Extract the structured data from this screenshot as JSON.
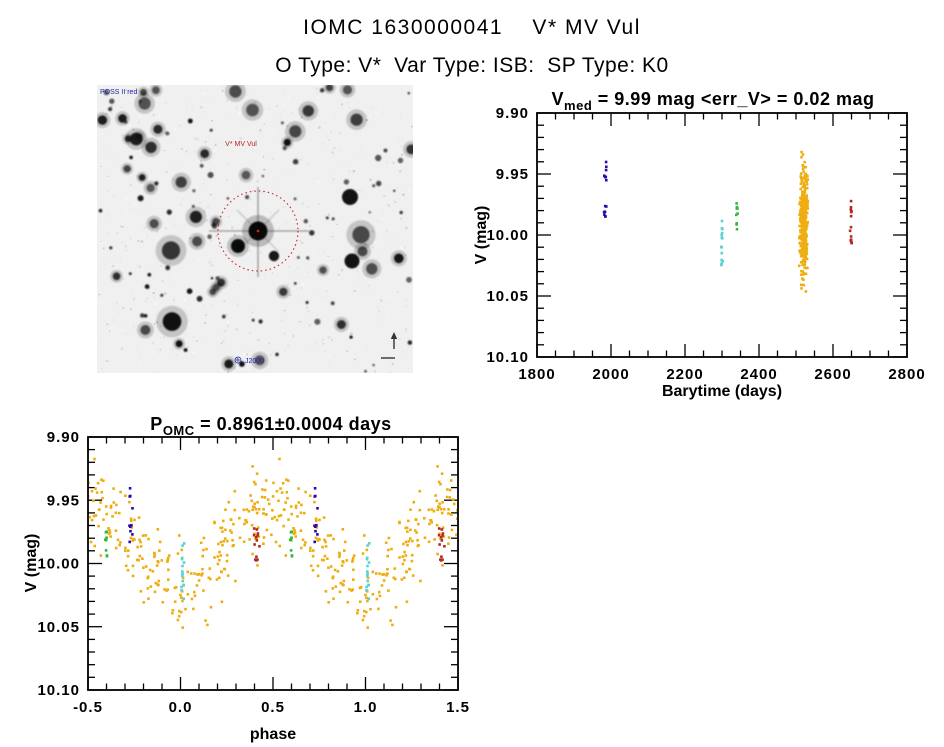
{
  "header": {
    "title": "IOMC 1630000041    V* MV Vul",
    "subtitle": "O Type: V*  Var Type: ISB:  SP Type: K0"
  },
  "finder_chart": {
    "survey_stamp": "POSS II red",
    "target_label": "V* MV Vul",
    "bottom_stamp": "J2000",
    "marker_color": "#cc2222",
    "description": "negative star-field finding chart with red dotted circle on target"
  },
  "colors": {
    "navy": "#2e08ad",
    "cyan": "#58d2d2",
    "green": "#37b83c",
    "gold": "#eeae12",
    "red": "#b42a20",
    "axis": "#000000"
  },
  "chart_data": [
    {
      "id": "lightcurve",
      "type": "scatter",
      "title": {
        "base": "V",
        "sub": "med",
        "rest": " = 9.99 mag <err_V> = 0.02 mag"
      },
      "xlabel": "Barytime (days)",
      "ylabel": "V (mag)",
      "xlim": [
        1800,
        2800
      ],
      "ylim": [
        9.9,
        10.1
      ],
      "y_inverted": true,
      "grid": false,
      "xticks": [
        {
          "v": 1800,
          "label": "1800"
        },
        {
          "v": 2000,
          "label": "2000"
        },
        {
          "v": 2200,
          "label": "2200"
        },
        {
          "v": 2400,
          "label": "2400"
        },
        {
          "v": 2600,
          "label": "2600"
        },
        {
          "v": 2800,
          "label": "2800"
        }
      ],
      "yticks": [
        {
          "v": 9.9,
          "label": "9.90"
        },
        {
          "v": 9.95,
          "label": "9.95"
        },
        {
          "v": 10.0,
          "label": "10.00"
        },
        {
          "v": 10.05,
          "label": "10.05"
        },
        {
          "v": 10.1,
          "label": "10.10"
        }
      ],
      "x_minor_step": 50,
      "y_minor_step": 0.01,
      "clusters": [
        {
          "name": "epoch-1",
          "color": "navy",
          "t": 1985,
          "t_spread": 4,
          "v_min": 9.94,
          "v_max": 9.986,
          "v_gap": [
            9.957,
            9.97
          ],
          "n": 14
        },
        {
          "name": "epoch-2",
          "color": "cyan",
          "t": 2300,
          "t_spread": 3,
          "v_min": 9.984,
          "v_max": 10.03,
          "n": 15
        },
        {
          "name": "epoch-3",
          "color": "green",
          "t": 2340,
          "t_spread": 3,
          "v_min": 9.974,
          "v_max": 9.996,
          "n": 9
        },
        {
          "name": "epoch-4",
          "color": "gold",
          "t": 2521,
          "t_spread": 13,
          "v_mean": 9.99,
          "v_sigma": 0.022,
          "v_min": 9.91,
          "v_max": 10.052,
          "n": 330,
          "gaussian": true
        },
        {
          "name": "epoch-5",
          "color": "red",
          "t": 2648,
          "t_spread": 3,
          "v_min": 9.972,
          "v_max": 10.007,
          "n": 13
        }
      ]
    },
    {
      "id": "phase-folded",
      "type": "scatter",
      "title": {
        "base": "P",
        "sub": "OMC",
        "rest": " = 0.8961±0.0004 days"
      },
      "xlabel": "phase",
      "ylabel": "V (mag)",
      "xlim": [
        -0.5,
        1.5
      ],
      "ylim": [
        9.9,
        10.1
      ],
      "y_inverted": true,
      "grid": false,
      "xticks": [
        {
          "v": -0.5,
          "label": "-0.5"
        },
        {
          "v": 0.0,
          "label": "0.0"
        },
        {
          "v": 0.5,
          "label": "0.5"
        },
        {
          "v": 1.0,
          "label": "1.0"
        },
        {
          "v": 1.5,
          "label": "1.5"
        }
      ],
      "yticks": [
        {
          "v": 9.9,
          "label": "9.90"
        },
        {
          "v": 9.95,
          "label": "9.95"
        },
        {
          "v": 10.0,
          "label": "10.00"
        },
        {
          "v": 10.05,
          "label": "10.05"
        },
        {
          "v": 10.1,
          "label": "10.10"
        }
      ],
      "x_minor_step": 0.1,
      "y_minor_step": 0.01,
      "fold_model": {
        "color": "gold",
        "v_mean": 9.986,
        "amplitude": 0.032,
        "noise_sigma": 0.016,
        "v_min": 9.906,
        "v_max": 10.055,
        "clumps_per_period": 17,
        "points_min": 10,
        "points_max": 22,
        "duplicated_range": "each point plotted at phase and phase+1"
      },
      "clusters": [
        {
          "name": "epoch-1",
          "color": "navy",
          "phase": -0.27,
          "p_spread": 0.012,
          "v_min": 9.94,
          "v_max": 9.986,
          "n": 10
        },
        {
          "name": "epoch-3",
          "color": "green",
          "phase": -0.4,
          "p_spread": 0.008,
          "v_min": 9.974,
          "v_max": 9.996,
          "n": 9
        },
        {
          "name": "epoch-2",
          "color": "cyan",
          "phase": 0.01,
          "p_spread": 0.012,
          "v_min": 9.984,
          "v_max": 10.03,
          "n": 14
        },
        {
          "name": "epoch-5",
          "color": "red",
          "phase": 0.41,
          "p_spread": 0.018,
          "v_min": 9.972,
          "v_max": 10.007,
          "n": 13
        }
      ]
    }
  ]
}
